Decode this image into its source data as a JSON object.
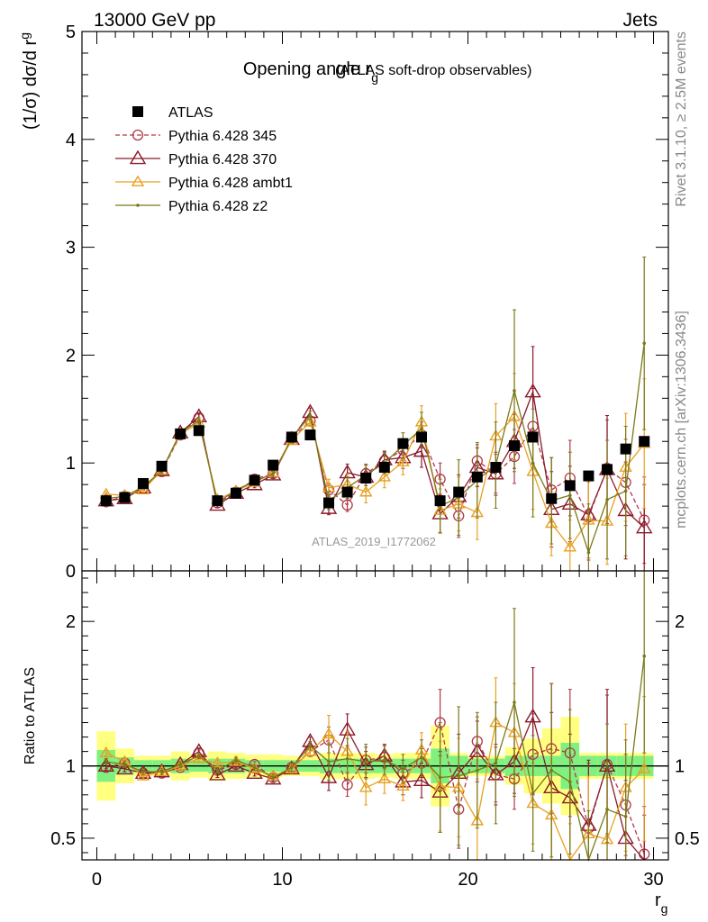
{
  "header": {
    "left": "13000 GeV pp",
    "right": "Jets"
  },
  "side_labels": {
    "rivet": "Rivet 3.1.10, ≥ 2.5M events",
    "mcplots": "mcplots.cern.ch [arXiv:1306.3436]"
  },
  "analysis_id": "ATLAS_2019_I1772062",
  "chart_data": [
    {
      "type": "line",
      "title": "Opening angle r",
      "title_subscript": "g",
      "title_suffix": "(ATLAS soft-drop observables)",
      "ylabel": "(1/σ) dσ/d r",
      "ylabel_subscript": "g",
      "xlim": [
        -0.8,
        30.8
      ],
      "ylim": [
        0,
        5
      ],
      "yticks": [
        "0",
        "1",
        "2",
        "3",
        "4",
        "5"
      ],
      "x": [
        0.5,
        1.5,
        2.5,
        3.5,
        4.5,
        5.5,
        6.5,
        7.5,
        8.5,
        9.5,
        10.5,
        11.5,
        12.5,
        13.5,
        14.5,
        15.5,
        16.5,
        17.5,
        18.5,
        19.5,
        20.5,
        21.5,
        22.5,
        23.5,
        24.5,
        25.5,
        26.5,
        27.5,
        28.5,
        29.5
      ],
      "series": [
        {
          "name": "ATLAS",
          "color": "#000000",
          "marker": "square",
          "line": "none",
          "values": [
            0.65,
            0.68,
            0.81,
            0.97,
            1.27,
            1.3,
            0.65,
            0.72,
            0.84,
            0.98,
            1.24,
            1.26,
            0.63,
            0.73,
            0.86,
            0.96,
            1.18,
            1.24,
            0.65,
            0.73,
            0.87,
            0.96,
            1.16,
            1.24,
            0.67,
            0.79,
            0.88,
            0.94,
            1.13,
            1.2
          ]
        },
        {
          "name": "Pythia 6.428 345",
          "color": "#b03a48",
          "marker": "circle",
          "line": "dashed",
          "values": [
            0.64,
            0.69,
            0.77,
            0.92,
            1.26,
            1.42,
            0.63,
            0.73,
            0.85,
            0.9,
            1.23,
            1.39,
            0.75,
            0.61,
            0.9,
            1.02,
            1.12,
            1.26,
            0.85,
            0.51,
            1.02,
            0.9,
            1.06,
            1.34,
            0.75,
            0.86,
            0.5,
            0.95,
            0.82,
            0.47
          ],
          "errors": [
            0.02,
            0.02,
            0.02,
            0.02,
            0.03,
            0.03,
            0.02,
            0.02,
            0.03,
            0.03,
            0.04,
            0.04,
            0.06,
            0.06,
            0.08,
            0.08,
            0.1,
            0.12,
            0.15,
            0.2,
            0.15,
            0.18,
            0.25,
            0.35,
            0.3,
            0.35,
            0.4,
            0.45,
            0.4,
            0.4
          ]
        },
        {
          "name": "Pythia 6.428 370",
          "color": "#8b1a2b",
          "marker": "triangle",
          "line": "solid",
          "values": [
            0.65,
            0.67,
            0.77,
            0.93,
            1.28,
            1.43,
            0.61,
            0.72,
            0.8,
            0.89,
            1.22,
            1.47,
            0.58,
            0.91,
            0.87,
            1.03,
            1.05,
            1.11,
            0.53,
            0.69,
            0.96,
            0.9,
            1.2,
            1.66,
            0.57,
            0.62,
            0.52,
            0.94,
            0.56,
            0.4
          ],
          "errors": [
            0.02,
            0.02,
            0.02,
            0.02,
            0.03,
            0.03,
            0.02,
            0.02,
            0.03,
            0.03,
            0.04,
            0.04,
            0.06,
            0.08,
            0.08,
            0.08,
            0.1,
            0.15,
            0.18,
            0.2,
            0.18,
            0.2,
            0.25,
            0.42,
            0.35,
            0.35,
            0.4,
            0.5,
            0.45,
            0.4
          ]
        },
        {
          "name": "Pythia 6.428 ambt1",
          "color": "#e8a020",
          "marker": "triangle",
          "line": "solid",
          "values": [
            0.71,
            0.7,
            0.75,
            0.93,
            1.27,
            1.37,
            0.66,
            0.74,
            0.82,
            0.91,
            1.21,
            1.38,
            0.77,
            0.8,
            0.73,
            0.87,
            1.01,
            1.38,
            0.56,
            0.62,
            0.54,
            1.25,
            1.43,
            0.92,
            0.44,
            0.22,
            0.47,
            0.46,
            0.96,
            1.18
          ],
          "errors": [
            0.02,
            0.02,
            0.02,
            0.02,
            0.03,
            0.03,
            0.02,
            0.02,
            0.03,
            0.03,
            0.04,
            0.04,
            0.08,
            0.1,
            0.1,
            0.1,
            0.12,
            0.15,
            0.2,
            0.25,
            0.25,
            0.3,
            0.4,
            0.35,
            0.3,
            0.25,
            0.35,
            0.4,
            0.5,
            0.6
          ]
        },
        {
          "name": "Pythia 6.428 z2",
          "color": "#7a7a1a",
          "marker": "dot",
          "line": "solid",
          "values": [
            0.67,
            0.69,
            0.78,
            0.93,
            1.28,
            1.39,
            0.63,
            0.75,
            0.83,
            0.9,
            1.23,
            1.44,
            0.65,
            0.77,
            0.89,
            1.0,
            1.16,
            1.32,
            0.6,
            0.68,
            0.84,
            0.98,
            1.67,
            1.0,
            0.65,
            0.7,
            0.17,
            0.66,
            0.74,
            2.11
          ],
          "errors": [
            0.02,
            0.02,
            0.02,
            0.02,
            0.03,
            0.03,
            0.02,
            0.02,
            0.03,
            0.03,
            0.04,
            0.04,
            0.08,
            0.1,
            0.1,
            0.1,
            0.12,
            0.15,
            0.25,
            0.35,
            0.35,
            0.4,
            0.75,
            0.5,
            0.4,
            0.4,
            0.45,
            0.55,
            0.6,
            0.8
          ]
        }
      ]
    },
    {
      "type": "line",
      "ylabel": "Ratio to ATLAS",
      "xlabel": "r",
      "xlabel_subscript": "g",
      "xlim": [
        -0.8,
        30.8
      ],
      "ylim": [
        0.35,
        2.35
      ],
      "yticks": [
        "0.5",
        "1",
        "2"
      ],
      "xticks": [
        "0",
        "10",
        "20",
        "30"
      ],
      "reference_line": 1,
      "bands": {
        "stat_color": "#80f080",
        "total_color": "#ffff80",
        "stat_halfwidth": [
          0.11,
          0.06,
          0.04,
          0.04,
          0.05,
          0.04,
          0.05,
          0.05,
          0.04,
          0.04,
          0.04,
          0.04,
          0.05,
          0.05,
          0.05,
          0.05,
          0.05,
          0.05,
          0.12,
          0.07,
          0.05,
          0.05,
          0.07,
          0.07,
          0.07,
          0.16,
          0.07,
          0.07,
          0.07,
          0.07
        ],
        "total_halfwidth": [
          0.24,
          0.12,
          0.07,
          0.07,
          0.1,
          0.08,
          0.1,
          0.09,
          0.08,
          0.08,
          0.07,
          0.07,
          0.09,
          0.09,
          0.09,
          0.08,
          0.09,
          0.09,
          0.28,
          0.09,
          0.07,
          0.07,
          0.13,
          0.19,
          0.26,
          0.34,
          0.09,
          0.09,
          0.09,
          0.09
        ]
      },
      "series": [
        {
          "name": "Pythia 6.428 345",
          "color": "#b03a48",
          "marker": "circle",
          "line": "dashed",
          "values": [
            0.99,
            1.02,
            0.95,
            0.95,
            0.99,
            1.09,
            0.97,
            1.01,
            1.01,
            0.92,
            0.99,
            1.1,
            1.18,
            0.87,
            1.04,
            1.06,
            0.95,
            1.02,
            1.3,
            0.7,
            1.17,
            0.94,
            0.91,
            1.08,
            1.12,
            1.09,
            0.57,
            1.01,
            0.73,
            0.39
          ],
          "errors": [
            0.02,
            0.02,
            0.02,
            0.02,
            0.02,
            0.02,
            0.02,
            0.02,
            0.02,
            0.02,
            0.03,
            0.03,
            0.09,
            0.08,
            0.09,
            0.08,
            0.09,
            0.1,
            0.23,
            0.27,
            0.17,
            0.19,
            0.21,
            0.28,
            0.45,
            0.44,
            0.45,
            0.48,
            0.35,
            0.33
          ]
        },
        {
          "name": "Pythia 6.428 370",
          "color": "#8b1a2b",
          "marker": "triangle",
          "line": "solid",
          "values": [
            1.0,
            0.98,
            0.95,
            0.96,
            1.01,
            1.1,
            0.94,
            1.0,
            0.95,
            0.91,
            0.98,
            1.17,
            0.92,
            1.25,
            1.01,
            1.07,
            0.89,
            0.9,
            0.82,
            0.95,
            1.1,
            0.94,
            1.03,
            1.34,
            0.85,
            0.78,
            0.59,
            1.0,
            0.5,
            0.33
          ],
          "errors": [
            0.02,
            0.02,
            0.02,
            0.02,
            0.02,
            0.02,
            0.02,
            0.02,
            0.02,
            0.02,
            0.03,
            0.03,
            0.09,
            0.11,
            0.09,
            0.08,
            0.09,
            0.12,
            0.28,
            0.27,
            0.21,
            0.21,
            0.22,
            0.34,
            0.52,
            0.44,
            0.45,
            0.53,
            0.4,
            0.33
          ]
        },
        {
          "name": "Pythia 6.428 ambt1",
          "color": "#e8a020",
          "marker": "triangle",
          "line": "solid",
          "values": [
            1.09,
            1.03,
            0.93,
            0.96,
            1.0,
            1.05,
            1.02,
            1.03,
            0.98,
            0.93,
            0.98,
            1.1,
            1.22,
            1.1,
            0.85,
            0.91,
            0.86,
            1.11,
            0.86,
            0.85,
            0.62,
            1.3,
            1.23,
            0.74,
            0.66,
            0.28,
            0.53,
            0.49,
            0.85,
            0.98
          ],
          "errors": [
            0.02,
            0.02,
            0.02,
            0.02,
            0.02,
            0.02,
            0.02,
            0.02,
            0.02,
            0.02,
            0.03,
            0.03,
            0.13,
            0.14,
            0.12,
            0.1,
            0.1,
            0.12,
            0.31,
            0.34,
            0.29,
            0.31,
            0.34,
            0.28,
            0.45,
            0.32,
            0.4,
            0.43,
            0.44,
            0.5
          ]
        },
        {
          "name": "Pythia 6.428 z2",
          "color": "#7a7a1a",
          "marker": "dot",
          "line": "solid",
          "values": [
            1.03,
            1.01,
            0.96,
            0.96,
            1.01,
            1.07,
            0.97,
            1.04,
            0.99,
            0.92,
            0.99,
            1.14,
            1.03,
            1.05,
            1.03,
            1.04,
            0.98,
            1.06,
            0.92,
            0.93,
            0.97,
            1.02,
            1.44,
            0.81,
            0.97,
            0.89,
            0.19,
            0.7,
            0.65,
            1.76
          ],
          "errors": [
            0.02,
            0.02,
            0.02,
            0.02,
            0.02,
            0.02,
            0.02,
            0.02,
            0.02,
            0.02,
            0.03,
            0.03,
            0.13,
            0.14,
            0.12,
            0.1,
            0.1,
            0.12,
            0.38,
            0.48,
            0.4,
            0.42,
            0.65,
            0.4,
            0.6,
            0.5,
            0.5,
            0.59,
            0.53,
            0.67
          ]
        }
      ]
    }
  ]
}
